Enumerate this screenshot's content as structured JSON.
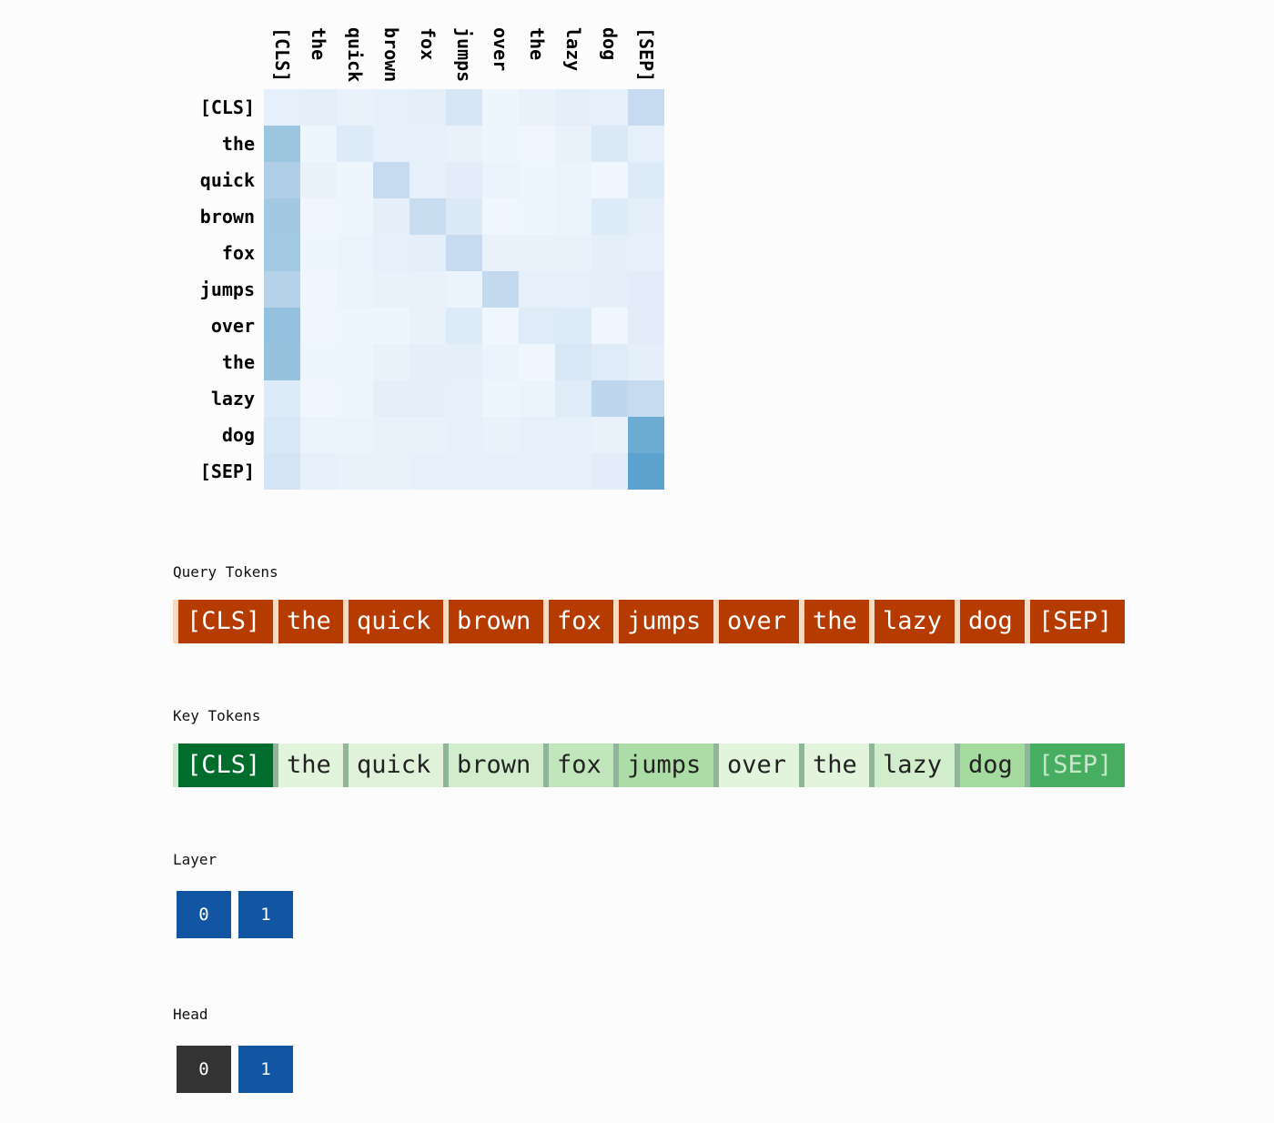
{
  "tokens": [
    "[CLS]",
    "the",
    "quick",
    "brown",
    "fox",
    "jumps",
    "over",
    "the",
    "lazy",
    "dog",
    "[SEP]"
  ],
  "attention_map": {
    "colormap": "blues",
    "values": [
      [
        0.06,
        0.07,
        0.05,
        0.06,
        0.07,
        0.13,
        0.03,
        0.05,
        0.07,
        0.06,
        0.2
      ],
      [
        0.35,
        0.03,
        0.1,
        0.06,
        0.06,
        0.05,
        0.03,
        0.02,
        0.05,
        0.11,
        0.06
      ],
      [
        0.28,
        0.05,
        0.03,
        0.2,
        0.06,
        0.08,
        0.04,
        0.03,
        0.04,
        0.02,
        0.1
      ],
      [
        0.33,
        0.02,
        0.03,
        0.07,
        0.19,
        0.11,
        0.02,
        0.03,
        0.04,
        0.1,
        0.07
      ],
      [
        0.32,
        0.03,
        0.04,
        0.06,
        0.07,
        0.2,
        0.05,
        0.05,
        0.05,
        0.07,
        0.06
      ],
      [
        0.26,
        0.02,
        0.04,
        0.05,
        0.05,
        0.04,
        0.21,
        0.06,
        0.06,
        0.07,
        0.08
      ],
      [
        0.38,
        0.02,
        0.03,
        0.03,
        0.05,
        0.1,
        0.02,
        0.09,
        0.1,
        0.02,
        0.08
      ],
      [
        0.37,
        0.03,
        0.03,
        0.05,
        0.07,
        0.07,
        0.04,
        0.02,
        0.12,
        0.09,
        0.07
      ],
      [
        0.1,
        0.02,
        0.03,
        0.07,
        0.07,
        0.06,
        0.03,
        0.04,
        0.09,
        0.23,
        0.2
      ],
      [
        0.12,
        0.04,
        0.04,
        0.05,
        0.05,
        0.06,
        0.05,
        0.06,
        0.06,
        0.05,
        0.55
      ],
      [
        0.14,
        0.06,
        0.05,
        0.05,
        0.06,
        0.06,
        0.06,
        0.06,
        0.06,
        0.08,
        0.62
      ]
    ]
  },
  "query_section": {
    "label": "Query Tokens",
    "color": "#b53b00",
    "text_color": "#ffffff",
    "selected_index": 0
  },
  "key_section": {
    "label": "Key Tokens",
    "weights": [
      1.0,
      0.1,
      0.12,
      0.22,
      0.28,
      0.36,
      0.1,
      0.1,
      0.22,
      0.38,
      0.68
    ]
  },
  "layer_selector": {
    "label": "Layer",
    "options": [
      "0",
      "1"
    ],
    "active_color": "#1155a3"
  },
  "head_selector": {
    "label": "Head",
    "options": [
      "0",
      "1"
    ],
    "selected": 0,
    "selected_color": "#333333",
    "color": "#1155a3"
  }
}
